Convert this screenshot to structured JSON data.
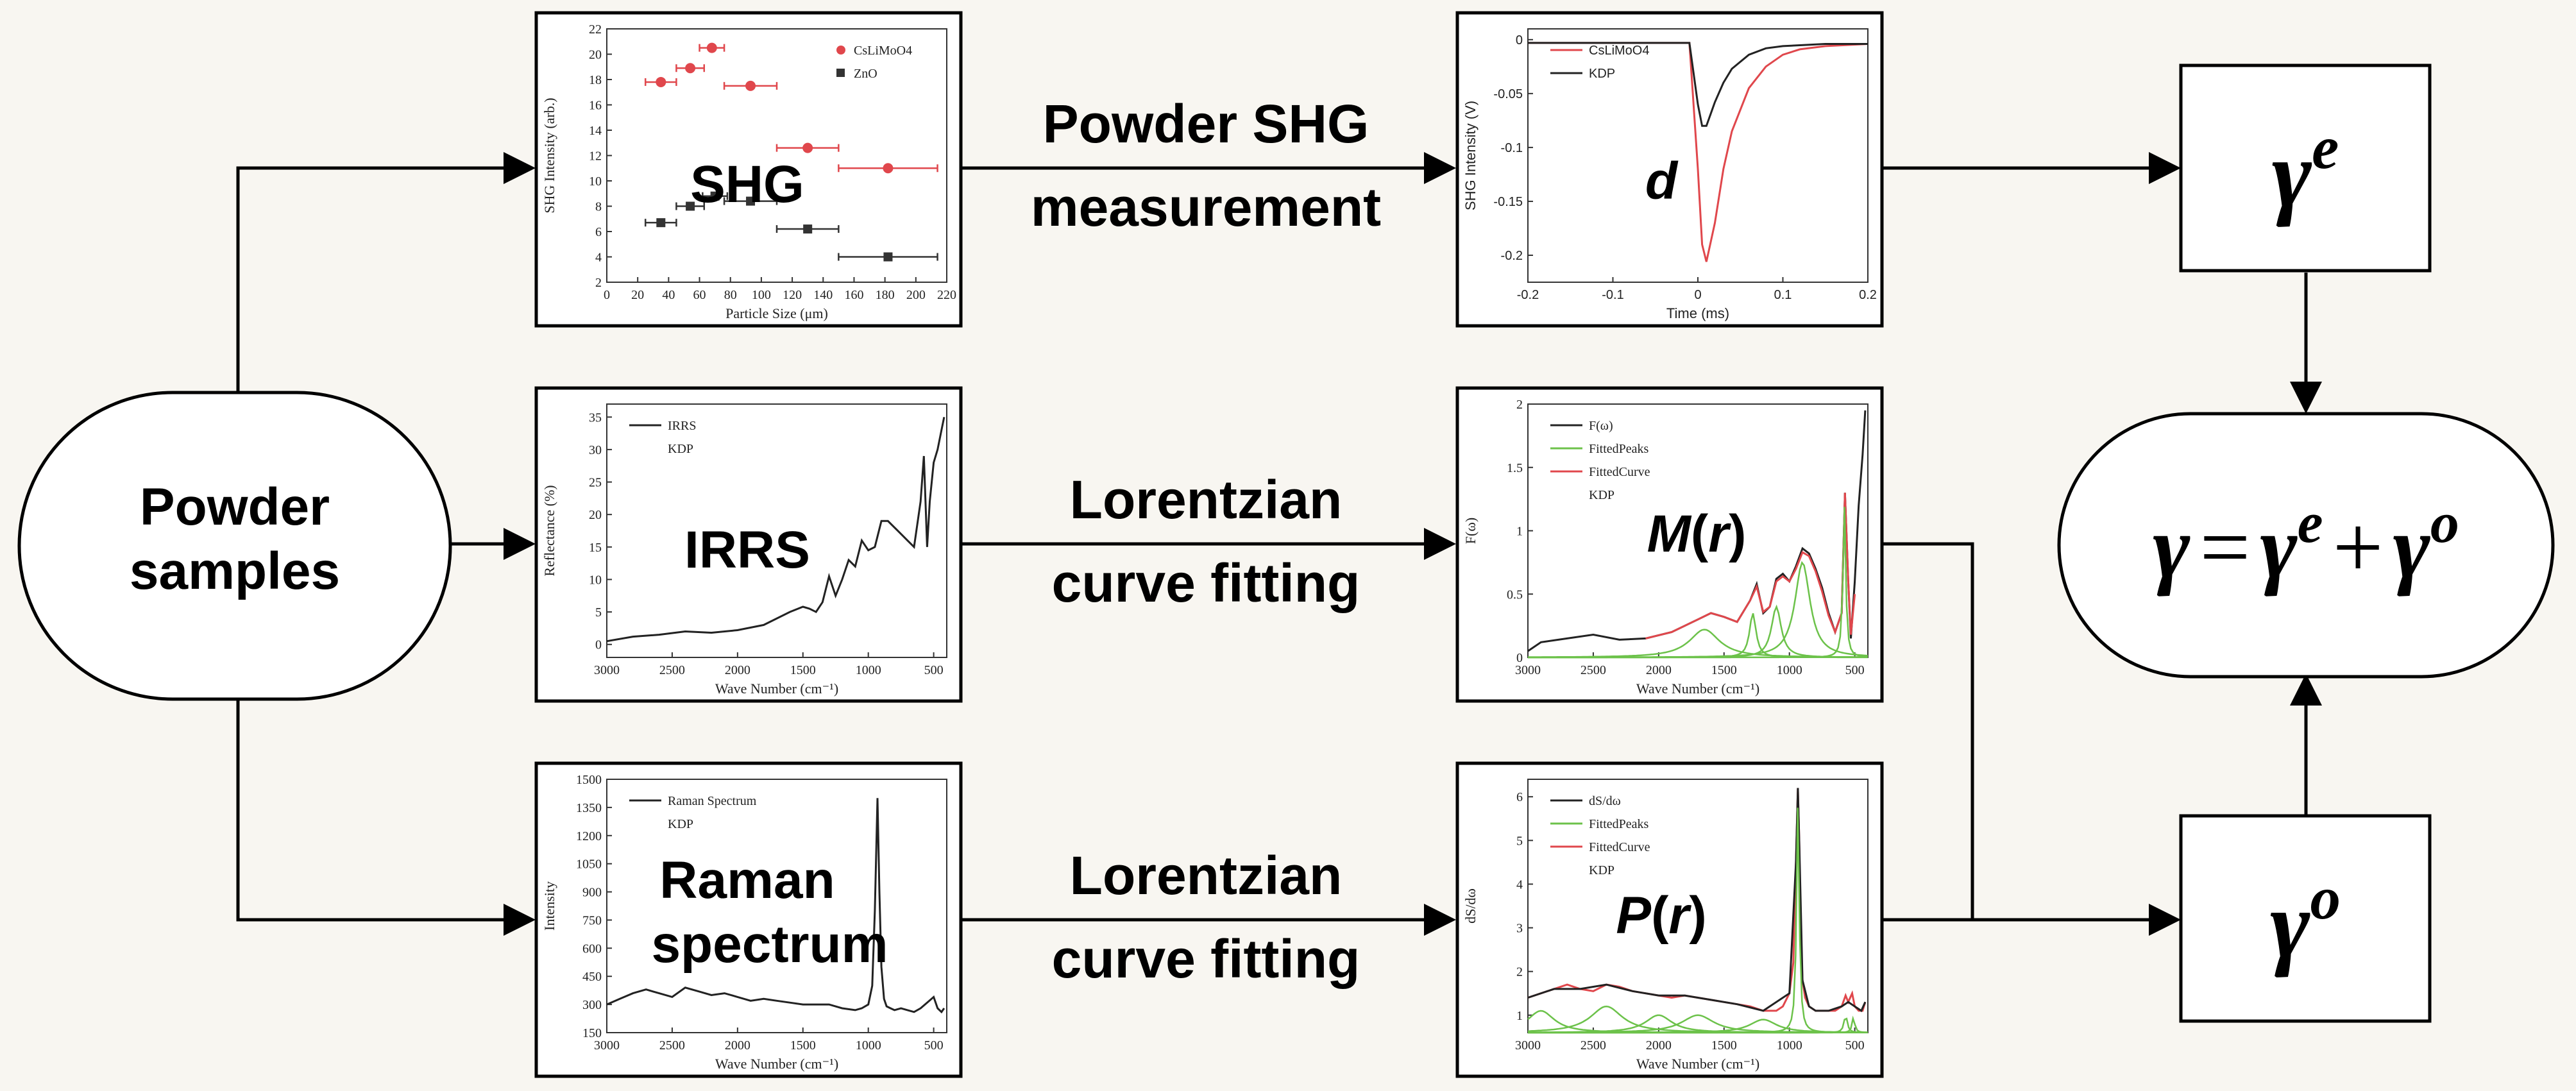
{
  "nodes": {
    "powder": {
      "line1": "Powder",
      "line2": "samples"
    },
    "gamma_e": {
      "base": "γ",
      "sup": "e"
    },
    "gamma_o": {
      "base": "γ",
      "sup": "o"
    },
    "gamma_total": {
      "g": "γ",
      "eq": "=",
      "g1": "γ",
      "s1": "e",
      "plus": "+",
      "g2": "γ",
      "s2": "o"
    }
  },
  "arrow_labels": {
    "shg": {
      "line1": "Powder SHG",
      "line2": "measurement"
    },
    "irrs": {
      "line1": "Lorentzian",
      "line2": "curve fitting"
    },
    "raman": {
      "line1": "Lorentzian",
      "line2": "curve fitting"
    }
  },
  "overlay_labels": {
    "shg": "SHG",
    "d": "d",
    "irrs": "IRRS",
    "m_r": {
      "pre": "M",
      "open": "(",
      "var": "r",
      "close": ")"
    },
    "raman": {
      "line1": "Raman",
      "line2": "spectrum"
    },
    "p_r": {
      "pre": "P",
      "open": "(",
      "var": "r",
      "close": ")"
    }
  },
  "chart_data": [
    {
      "id": "shg",
      "type": "scatter",
      "xlabel": "Particle Size (μm)",
      "ylabel": "SHG Intensity (arb.)",
      "xlim": [
        0,
        220
      ],
      "ylim": [
        2,
        22
      ],
      "xticks": [
        0,
        20,
        40,
        60,
        80,
        100,
        120,
        140,
        160,
        180,
        200,
        220
      ],
      "yticks": [
        2,
        4,
        6,
        8,
        10,
        12,
        14,
        16,
        18,
        20,
        22
      ],
      "legend": [
        "CsLiMoO4",
        "ZnO"
      ],
      "legend_position": "top-right",
      "series": [
        {
          "name": "CsLiMoO4",
          "color": "#e0474c",
          "marker": "circle",
          "points": [
            [
              35,
              17.8,
              10
            ],
            [
              54,
              18.9,
              9
            ],
            [
              68,
              20.5,
              8
            ],
            [
              93,
              17.5,
              17
            ],
            [
              130,
              12.6,
              20
            ],
            [
              182,
              11.0,
              32
            ]
          ]
        },
        {
          "name": "ZnO",
          "color": "#333333",
          "marker": "square",
          "points": [
            [
              35,
              6.7,
              10
            ],
            [
              54,
              8.0,
              9
            ],
            [
              70,
              8.8,
              8
            ],
            [
              93,
              8.4,
              17
            ],
            [
              130,
              6.2,
              20
            ],
            [
              182,
              4.0,
              32
            ]
          ]
        }
      ]
    },
    {
      "id": "d",
      "type": "line",
      "xlabel": "Time (ms)",
      "ylabel": "SHG Intensity (V)",
      "xlim": [
        -0.2,
        0.2
      ],
      "ylim": [
        -0.225,
        0.01
      ],
      "xticks": [
        -0.2,
        -0.1,
        0.0,
        0.1,
        0.2
      ],
      "yticks": [
        0.0,
        -0.05,
        -0.1,
        -0.15,
        -0.2
      ],
      "legend": [
        "CsLiMoO4",
        "KDP"
      ],
      "legend_position": "top-left",
      "series": [
        {
          "name": "CsLiMoO4",
          "color": "#e0474c",
          "x": [
            -0.2,
            -0.01,
            0.0,
            0.005,
            0.01,
            0.02,
            0.03,
            0.04,
            0.06,
            0.08,
            0.1,
            0.12,
            0.15,
            0.2
          ],
          "y": [
            -0.003,
            -0.003,
            -0.12,
            -0.19,
            -0.206,
            -0.17,
            -0.12,
            -0.085,
            -0.045,
            -0.025,
            -0.014,
            -0.009,
            -0.006,
            -0.004
          ]
        },
        {
          "name": "KDP",
          "color": "#222222",
          "x": [
            -0.2,
            -0.01,
            0.0,
            0.005,
            0.01,
            0.02,
            0.03,
            0.04,
            0.06,
            0.08,
            0.1,
            0.15,
            0.2
          ],
          "y": [
            -0.003,
            -0.003,
            -0.06,
            -0.08,
            -0.08,
            -0.058,
            -0.04,
            -0.027,
            -0.014,
            -0.008,
            -0.006,
            -0.004,
            -0.004
          ]
        }
      ]
    },
    {
      "id": "irrs",
      "type": "line",
      "xlabel": "Wave Number (cm⁻¹)",
      "ylabel": "Reflectance (%)",
      "xlim": [
        3000,
        400
      ],
      "ylim": [
        -2,
        37
      ],
      "xticks": [
        3000,
        2500,
        2000,
        1500,
        1000,
        500
      ],
      "yticks": [
        0,
        5,
        10,
        15,
        20,
        25,
        30,
        35
      ],
      "legend": [
        "IRRS",
        "KDP"
      ],
      "legend_position": "top-left",
      "series": [
        {
          "name": "IRRS",
          "color": "#222222",
          "x": [
            3000,
            2800,
            2600,
            2400,
            2200,
            2000,
            1800,
            1600,
            1500,
            1450,
            1400,
            1350,
            1300,
            1250,
            1200,
            1150,
            1100,
            1050,
            1000,
            950,
            900,
            850,
            800,
            750,
            700,
            650,
            600,
            575,
            550,
            530,
            500,
            470,
            440,
            420
          ],
          "y": [
            0.5,
            1.2,
            1.5,
            2.0,
            1.8,
            2.2,
            3.0,
            5.0,
            5.8,
            5.5,
            5.0,
            6.5,
            10.5,
            7.5,
            10.0,
            13.0,
            12.0,
            16.0,
            14.5,
            15.0,
            19.0,
            19.0,
            18.0,
            17.0,
            16.0,
            15.0,
            22.0,
            29.0,
            15.0,
            22.0,
            28.0,
            30.0,
            33.0,
            35.0
          ]
        }
      ]
    },
    {
      "id": "m_r",
      "type": "line",
      "xlabel": "Wave Number (cm⁻¹)",
      "ylabel": "F(ω)",
      "xlim": [
        3000,
        400
      ],
      "ylim": [
        0,
        2.0
      ],
      "xticks": [
        3000,
        2500,
        2000,
        1500,
        1000,
        500
      ],
      "yticks": [
        0.0,
        0.5,
        1.0,
        1.5,
        2.0
      ],
      "legend": [
        "F(ω)",
        "FittedPeaks",
        "FittedCurve",
        "KDP"
      ],
      "legend_position": "top-left",
      "series": [
        {
          "name": "F(ω)",
          "color": "#222222",
          "x": [
            3000,
            2900,
            2700,
            2500,
            2300,
            2100,
            1900,
            1700,
            1600,
            1500,
            1400,
            1300,
            1250,
            1200,
            1150,
            1100,
            1050,
            1000,
            950,
            900,
            850,
            800,
            750,
            700,
            650,
            600,
            575,
            550,
            530,
            500,
            470,
            440,
            420
          ],
          "y": [
            0.05,
            0.12,
            0.15,
            0.18,
            0.14,
            0.15,
            0.2,
            0.3,
            0.35,
            0.32,
            0.28,
            0.45,
            0.58,
            0.35,
            0.4,
            0.62,
            0.66,
            0.6,
            0.72,
            0.86,
            0.82,
            0.7,
            0.55,
            0.35,
            0.2,
            0.35,
            1.3,
            0.6,
            0.15,
            0.6,
            1.2,
            1.6,
            1.95
          ]
        },
        {
          "name": "FittedCurve",
          "color": "#e0474c",
          "x": [
            2100,
            1900,
            1700,
            1600,
            1500,
            1400,
            1300,
            1250,
            1200,
            1150,
            1100,
            1050,
            1000,
            950,
            900,
            850,
            800,
            750,
            700,
            650,
            600,
            575,
            550,
            530,
            500
          ],
          "y": [
            0.15,
            0.2,
            0.3,
            0.35,
            0.32,
            0.28,
            0.45,
            0.56,
            0.36,
            0.4,
            0.6,
            0.64,
            0.6,
            0.7,
            0.83,
            0.8,
            0.68,
            0.52,
            0.33,
            0.2,
            0.35,
            1.3,
            0.6,
            0.18,
            0.5
          ]
        },
        {
          "name": "FittedPeaks",
          "color": "#6cc24a",
          "peaks": [
            [
              1650,
              0.22,
              280
            ],
            [
              1280,
              0.35,
              60
            ],
            [
              1100,
              0.4,
              90
            ],
            [
              900,
              0.75,
              140
            ],
            [
              580,
              1.2,
              25
            ]
          ]
        }
      ]
    },
    {
      "id": "raman",
      "type": "line",
      "xlabel": "Wave Number (cm⁻¹)",
      "ylabel": "Intensity",
      "xlim": [
        3000,
        400
      ],
      "ylim": [
        150,
        1500
      ],
      "xticks": [
        3000,
        2500,
        2000,
        1500,
        1000,
        500
      ],
      "yticks": [
        150,
        300,
        450,
        600,
        750,
        900,
        1050,
        1200,
        1350,
        1500
      ],
      "legend": [
        "Raman Spectrum",
        "KDP"
      ],
      "legend_position": "top-left",
      "series": [
        {
          "name": "Raman Spectrum",
          "color": "#222222",
          "x": [
            3000,
            2900,
            2800,
            2700,
            2600,
            2500,
            2400,
            2300,
            2200,
            2100,
            2000,
            1900,
            1800,
            1700,
            1600,
            1500,
            1400,
            1300,
            1200,
            1100,
            1050,
            1000,
            970,
            950,
            930,
            915,
            900,
            880,
            860,
            830,
            800,
            750,
            700,
            650,
            600,
            550,
            500,
            470,
            440,
            420
          ],
          "y": [
            300,
            330,
            360,
            380,
            360,
            340,
            390,
            370,
            350,
            360,
            340,
            320,
            330,
            320,
            310,
            300,
            300,
            300,
            280,
            270,
            280,
            300,
            400,
            800,
            1400,
            900,
            500,
            330,
            290,
            280,
            270,
            280,
            270,
            260,
            280,
            310,
            340,
            280,
            260,
            280
          ]
        }
      ]
    },
    {
      "id": "p_r",
      "type": "line",
      "xlabel": "Wave Number (cm⁻¹)",
      "ylabel": "dS/dω",
      "xlim": [
        3000,
        400
      ],
      "ylim": [
        0.6,
        6.4
      ],
      "xticks": [
        3000,
        2500,
        2000,
        1500,
        1000,
        500
      ],
      "yticks": [
        1,
        2,
        3,
        4,
        5,
        6
      ],
      "legend": [
        "dS/dω",
        "FittedPeaks",
        "FittedCurve",
        "KDP"
      ],
      "legend_position": "top-left",
      "series": [
        {
          "name": "FittedCurve",
          "color": "#e0474c",
          "x": [
            3000,
            2900,
            2800,
            2700,
            2600,
            2500,
            2400,
            2300,
            2200,
            2100,
            2000,
            1900,
            1800,
            1700,
            1600,
            1500,
            1400,
            1300,
            1200,
            1100,
            1050,
            1000,
            970,
            950,
            935,
            925,
            915,
            900,
            880,
            850,
            800,
            750,
            700,
            650,
            600,
            570,
            550,
            520,
            500,
            470,
            440,
            420
          ],
          "y": [
            1.4,
            1.5,
            1.6,
            1.7,
            1.6,
            1.55,
            1.7,
            1.65,
            1.55,
            1.5,
            1.45,
            1.4,
            1.45,
            1.4,
            1.35,
            1.3,
            1.25,
            1.2,
            1.1,
            1.1,
            1.2,
            1.5,
            2.2,
            4.5,
            6.2,
            5.0,
            3.0,
            1.8,
            1.4,
            1.2,
            1.1,
            1.1,
            1.1,
            1.1,
            1.2,
            1.45,
            1.3,
            1.5,
            1.2,
            1.1,
            1.1,
            1.3
          ]
        },
        {
          "name": "dS/dω",
          "color": "#222222",
          "x": [
            3000,
            2800,
            2600,
            2400,
            2200,
            2000,
            1800,
            1600,
            1400,
            1200,
            1000,
            950,
            935,
            925,
            900,
            850,
            800,
            700,
            600,
            550,
            500,
            450,
            420
          ],
          "y": [
            1.4,
            1.6,
            1.6,
            1.7,
            1.55,
            1.45,
            1.45,
            1.35,
            1.25,
            1.1,
            1.5,
            4.5,
            6.2,
            5.0,
            1.8,
            1.2,
            1.1,
            1.1,
            1.2,
            1.3,
            1.2,
            1.1,
            1.3
          ]
        },
        {
          "name": "FittedPeaks",
          "color": "#6cc24a",
          "peaks": [
            [
              2900,
              0.5,
              250
            ],
            [
              2400,
              0.6,
              300
            ],
            [
              2000,
              0.4,
              250
            ],
            [
              1700,
              0.4,
              300
            ],
            [
              1200,
              0.3,
              250
            ],
            [
              935,
              5.2,
              25
            ],
            [
              570,
              0.4,
              30
            ],
            [
              510,
              0.35,
              25
            ]
          ]
        }
      ]
    }
  ]
}
